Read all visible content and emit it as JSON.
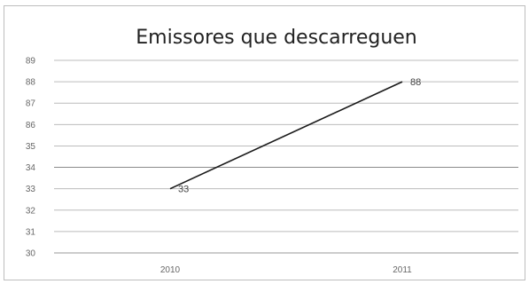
{
  "chart_data": {
    "type": "line",
    "title": "Emissores que descarreguen",
    "categories": [
      "2010",
      "2011"
    ],
    "series": [
      {
        "values": [
          33,
          88
        ],
        "color": "#1a1a1a"
      }
    ],
    "y_tick_labels": [
      "30",
      "31",
      "32",
      "33",
      "34",
      "35",
      "86",
      "87",
      "88",
      "89"
    ],
    "data_labels": [
      "33",
      "88"
    ],
    "grid": true,
    "legend": "none"
  }
}
